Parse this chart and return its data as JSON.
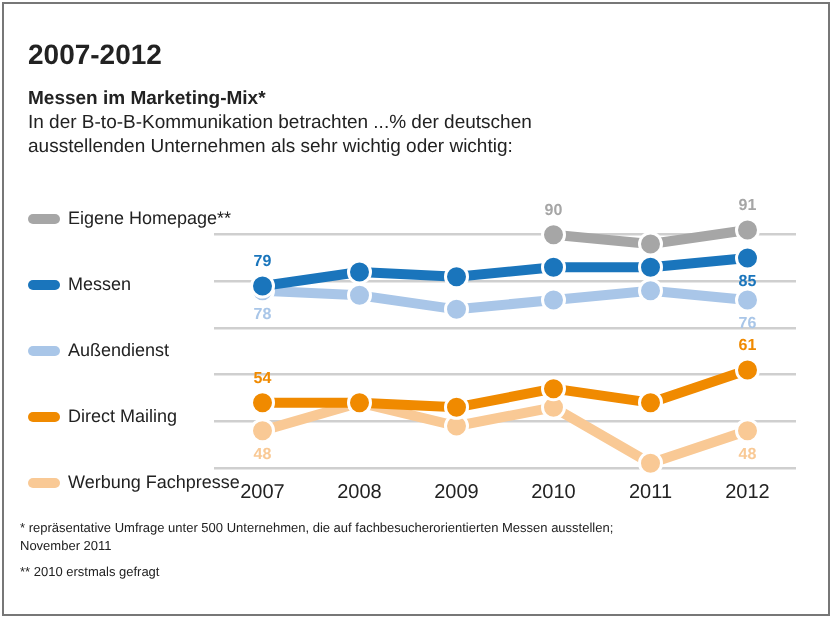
{
  "chart_data": {
    "type": "line",
    "title": "2007-2012",
    "subtitle": "Messen im Marketing-Mix*",
    "annotations": [
      "In der B-to-B-Kommunikation betrachten ...% der deutschen ausstellenden Unternehmen als sehr wichtig oder wichtig:",
      "* repräsentative Umfrage unter 500 Unternehmen, die auf fachbesucherorientierten Messen ausstellen; November 2011",
      "** 2010 erstmals gefragt"
    ],
    "categories": [
      "2007",
      "2008",
      "2009",
      "2010",
      "2011",
      "2012"
    ],
    "series": [
      {
        "name": "Eigene Homepage**",
        "color": "#a6a6a6",
        "values": [
          null,
          null,
          null,
          90,
          88,
          91
        ],
        "value_labels": [
          null,
          null,
          null,
          "90",
          null,
          "91"
        ]
      },
      {
        "name": "Messen",
        "color": "#1a75bc",
        "values": [
          79,
          82,
          81,
          83,
          83,
          85
        ],
        "value_labels": [
          "79",
          null,
          null,
          null,
          null,
          "85"
        ]
      },
      {
        "name": "Außendienst",
        "color": "#a9c6e8",
        "values": [
          78,
          77,
          74,
          76,
          78,
          76
        ],
        "value_labels": [
          "78",
          null,
          null,
          null,
          null,
          "76"
        ]
      },
      {
        "name": "Direct Mailing",
        "color": "#f08a00",
        "values": [
          54,
          54,
          53,
          57,
          54,
          61
        ],
        "value_labels": [
          "54",
          null,
          null,
          null,
          null,
          "61"
        ]
      },
      {
        "name": "Werbung Fachpresse",
        "color": "#f9c995",
        "values": [
          48,
          54,
          49,
          53,
          41,
          48
        ],
        "value_labels": [
          "48",
          null,
          null,
          null,
          null,
          "48"
        ]
      }
    ],
    "yticks": [
      {
        "value": 40,
        "label": null
      },
      {
        "value": 50,
        "label": null
      },
      {
        "value": 60,
        "label": null
      },
      {
        "value": 70,
        "label": null
      },
      {
        "value": 80,
        "label": null
      },
      {
        "value": 90,
        "label": null
      }
    ],
    "grid": "y",
    "legend": "left",
    "marker": "circle",
    "line_style": "solid"
  }
}
